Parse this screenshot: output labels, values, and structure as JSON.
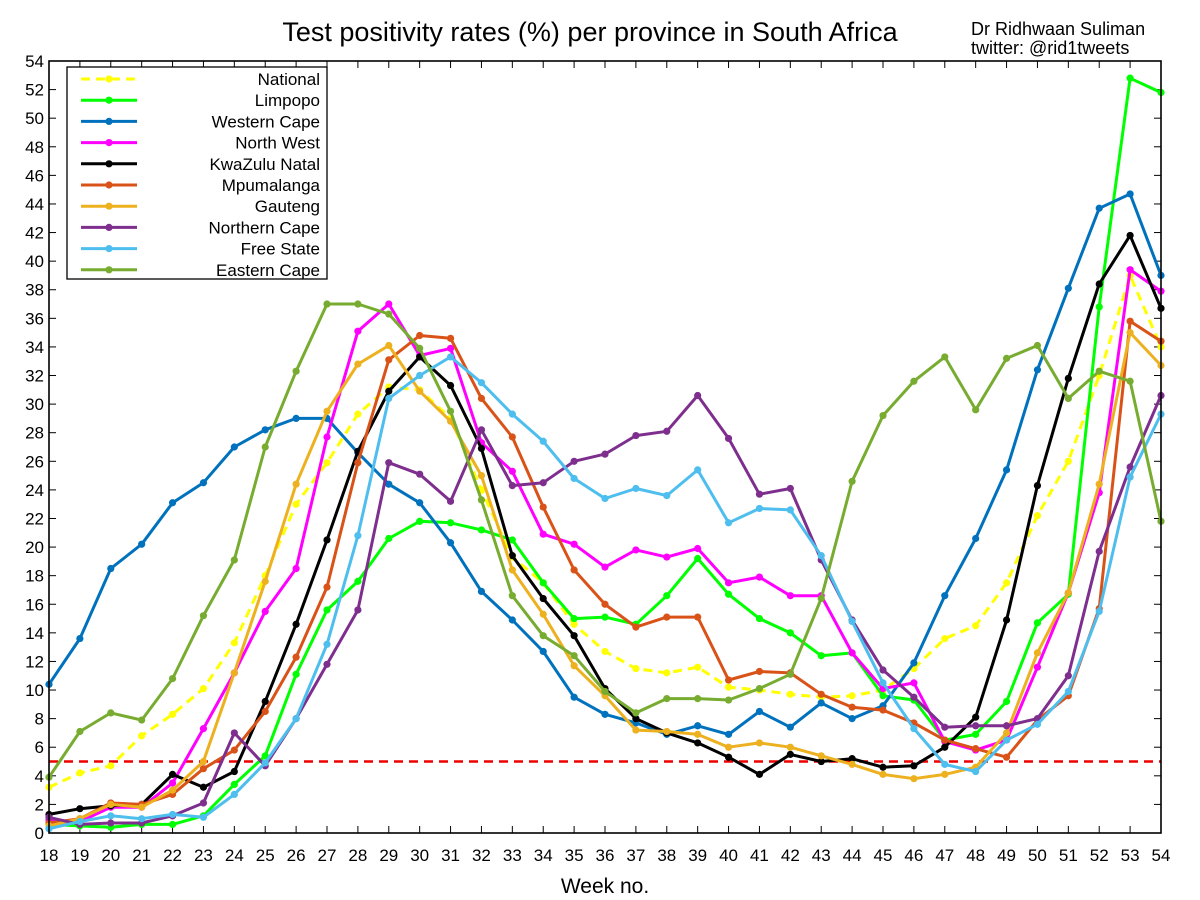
{
  "chart_data": {
    "type": "line",
    "title": "Test positivity rates (%) per province in South Africa",
    "credit": [
      "Dr Ridhwaan Suliman",
      "twitter: @rid1tweets"
    ],
    "xlabel": "Week no.",
    "ylabel": "",
    "xlim": [
      18,
      54
    ],
    "ylim": [
      0,
      54
    ],
    "x": [
      18,
      19,
      20,
      21,
      22,
      23,
      24,
      25,
      26,
      27,
      28,
      29,
      30,
      31,
      32,
      33,
      34,
      35,
      36,
      37,
      38,
      39,
      40,
      41,
      42,
      43,
      44,
      45,
      46,
      47,
      48,
      49,
      50,
      51,
      52,
      53,
      54
    ],
    "x_ticks": [
      "18",
      "19",
      "20",
      "21",
      "22",
      "23",
      "24",
      "25",
      "26",
      "27",
      "28",
      "29",
      "30",
      "31",
      "32",
      "33",
      "34",
      "35",
      "36",
      "37",
      "38",
      "39",
      "40",
      "41",
      "42",
      "43",
      "44",
      "45",
      "46",
      "47",
      "48",
      "49",
      "50",
      "51",
      "52",
      "53",
      "54"
    ],
    "y_ticks": [
      "0",
      "2",
      "4",
      "6",
      "8",
      "10",
      "12",
      "14",
      "16",
      "18",
      "20",
      "22",
      "24",
      "26",
      "28",
      "30",
      "32",
      "34",
      "36",
      "38",
      "40",
      "42",
      "44",
      "46",
      "48",
      "50",
      "52",
      "54"
    ],
    "threshold": {
      "value": 5,
      "color": "#ee0000"
    },
    "legend_position": "top-left",
    "series": [
      {
        "name": "National",
        "color": "#ffff00",
        "dashed": true,
        "values": [
          3.2,
          4.2,
          4.7,
          6.8,
          8.3,
          10.1,
          13.3,
          18.0,
          23.0,
          25.9,
          29.3,
          31.2,
          31.0,
          29.0,
          24.0,
          19.3,
          17.5,
          14.6,
          12.7,
          11.5,
          11.2,
          11.6,
          10.2,
          10.0,
          9.7,
          9.5,
          9.6,
          10.0,
          11.5,
          13.6,
          14.5,
          17.5,
          22.2,
          26.0,
          32.0,
          39.0,
          34.0
        ]
      },
      {
        "name": "Limpopo",
        "color": "#00ff00",
        "dashed": false,
        "values": [
          0.6,
          0.5,
          0.4,
          0.6,
          0.6,
          1.2,
          3.4,
          5.4,
          11.1,
          15.6,
          17.6,
          20.6,
          21.8,
          21.7,
          21.2,
          20.5,
          17.5,
          15.0,
          15.1,
          14.6,
          16.6,
          19.2,
          16.7,
          15.0,
          14.0,
          12.4,
          12.6,
          9.6,
          9.3,
          6.5,
          6.9,
          9.2,
          14.7,
          16.7,
          36.8,
          52.8,
          51.8
        ]
      },
      {
        "name": "Western Cape",
        "color": "#0072bd",
        "dashed": false,
        "values": [
          10.4,
          13.6,
          18.5,
          20.2,
          23.1,
          24.5,
          27.0,
          28.2,
          29.0,
          29.0,
          26.6,
          24.4,
          23.1,
          20.3,
          16.9,
          14.9,
          12.7,
          9.5,
          8.3,
          7.7,
          6.9,
          7.5,
          6.9,
          8.5,
          7.4,
          9.1,
          8.0,
          8.9,
          11.9,
          16.6,
          20.6,
          25.4,
          32.4,
          38.1,
          43.7,
          44.7,
          39.0
        ]
      },
      {
        "name": "North West",
        "color": "#ff00ff",
        "dashed": false,
        "values": [
          0.9,
          0.8,
          1.8,
          1.8,
          3.5,
          7.3,
          11.2,
          15.5,
          18.5,
          27.7,
          35.1,
          37.0,
          33.4,
          33.9,
          27.3,
          25.3,
          20.9,
          20.2,
          18.6,
          19.8,
          19.3,
          19.9,
          17.5,
          17.9,
          16.6,
          16.6,
          12.6,
          10.1,
          10.5,
          6.4,
          5.8,
          6.5,
          11.6,
          16.8,
          23.8,
          39.4,
          37.9
        ]
      },
      {
        "name": "KwaZulu Natal",
        "color": "#000000",
        "dashed": false,
        "values": [
          1.3,
          1.7,
          1.9,
          2.0,
          4.1,
          3.2,
          4.3,
          9.2,
          14.6,
          20.5,
          26.7,
          30.9,
          33.3,
          31.3,
          26.9,
          19.4,
          16.4,
          13.8,
          10.1,
          8.0,
          7.0,
          6.3,
          5.3,
          4.1,
          5.5,
          5.0,
          5.2,
          4.6,
          4.7,
          6.0,
          8.1,
          14.9,
          24.3,
          31.8,
          38.4,
          41.8,
          36.7
        ]
      },
      {
        "name": "Mpumalanga",
        "color": "#d95319",
        "dashed": false,
        "values": [
          0.7,
          1.0,
          2.1,
          2.0,
          2.7,
          4.5,
          5.8,
          8.5,
          12.3,
          17.2,
          25.9,
          33.1,
          34.8,
          34.6,
          30.4,
          27.7,
          22.8,
          18.4,
          16.0,
          14.4,
          15.1,
          15.1,
          10.7,
          11.3,
          11.2,
          9.7,
          8.8,
          8.6,
          7.7,
          6.5,
          5.9,
          5.3,
          7.9,
          9.6,
          15.7,
          35.8,
          34.4
        ]
      },
      {
        "name": "Gauteng",
        "color": "#edb120",
        "dashed": false,
        "values": [
          0.5,
          1.0,
          2.0,
          1.8,
          3.0,
          5.0,
          11.2,
          17.6,
          24.4,
          29.5,
          32.8,
          34.1,
          30.9,
          28.8,
          25.0,
          18.4,
          15.3,
          11.7,
          9.6,
          7.2,
          7.1,
          6.9,
          6.0,
          6.3,
          6.0,
          5.4,
          4.8,
          4.1,
          3.8,
          4.1,
          4.6,
          7.0,
          12.6,
          16.8,
          24.4,
          35.0,
          32.7
        ]
      },
      {
        "name": "Northern Cape",
        "color": "#7e2f8e",
        "dashed": false,
        "values": [
          1.1,
          0.6,
          0.7,
          0.7,
          1.2,
          2.1,
          7.0,
          4.7,
          8.0,
          11.8,
          15.6,
          25.9,
          25.1,
          23.2,
          28.2,
          24.3,
          24.5,
          26.0,
          26.5,
          27.8,
          28.1,
          30.6,
          27.6,
          23.7,
          24.1,
          19.1,
          14.9,
          11.4,
          9.5,
          7.4,
          7.5,
          7.5,
          8.0,
          11.0,
          19.7,
          25.6,
          30.6
        ]
      },
      {
        "name": "Free State",
        "color": "#4dbeee",
        "dashed": false,
        "values": [
          0.3,
          0.8,
          1.2,
          1.0,
          1.3,
          1.1,
          2.7,
          4.9,
          8.0,
          13.2,
          20.8,
          30.4,
          32.0,
          33.3,
          31.5,
          29.3,
          27.4,
          24.8,
          23.4,
          24.1,
          23.6,
          25.4,
          21.7,
          22.7,
          22.6,
          19.4,
          14.8,
          10.5,
          7.3,
          4.8,
          4.3,
          6.5,
          7.6,
          9.9,
          15.5,
          24.9,
          29.3
        ]
      },
      {
        "name": "Eastern Cape",
        "color": "#77ac30",
        "dashed": false,
        "values": [
          3.9,
          7.1,
          8.4,
          7.9,
          10.8,
          15.2,
          19.1,
          27.0,
          32.3,
          37.0,
          37.0,
          36.3,
          33.9,
          29.5,
          23.3,
          16.6,
          13.8,
          12.4,
          9.9,
          8.4,
          9.4,
          9.4,
          9.3,
          10.1,
          11.1,
          16.4,
          24.6,
          29.2,
          31.6,
          33.3,
          29.6,
          33.2,
          34.1,
          30.4,
          32.3,
          31.6,
          21.8
        ]
      }
    ]
  }
}
